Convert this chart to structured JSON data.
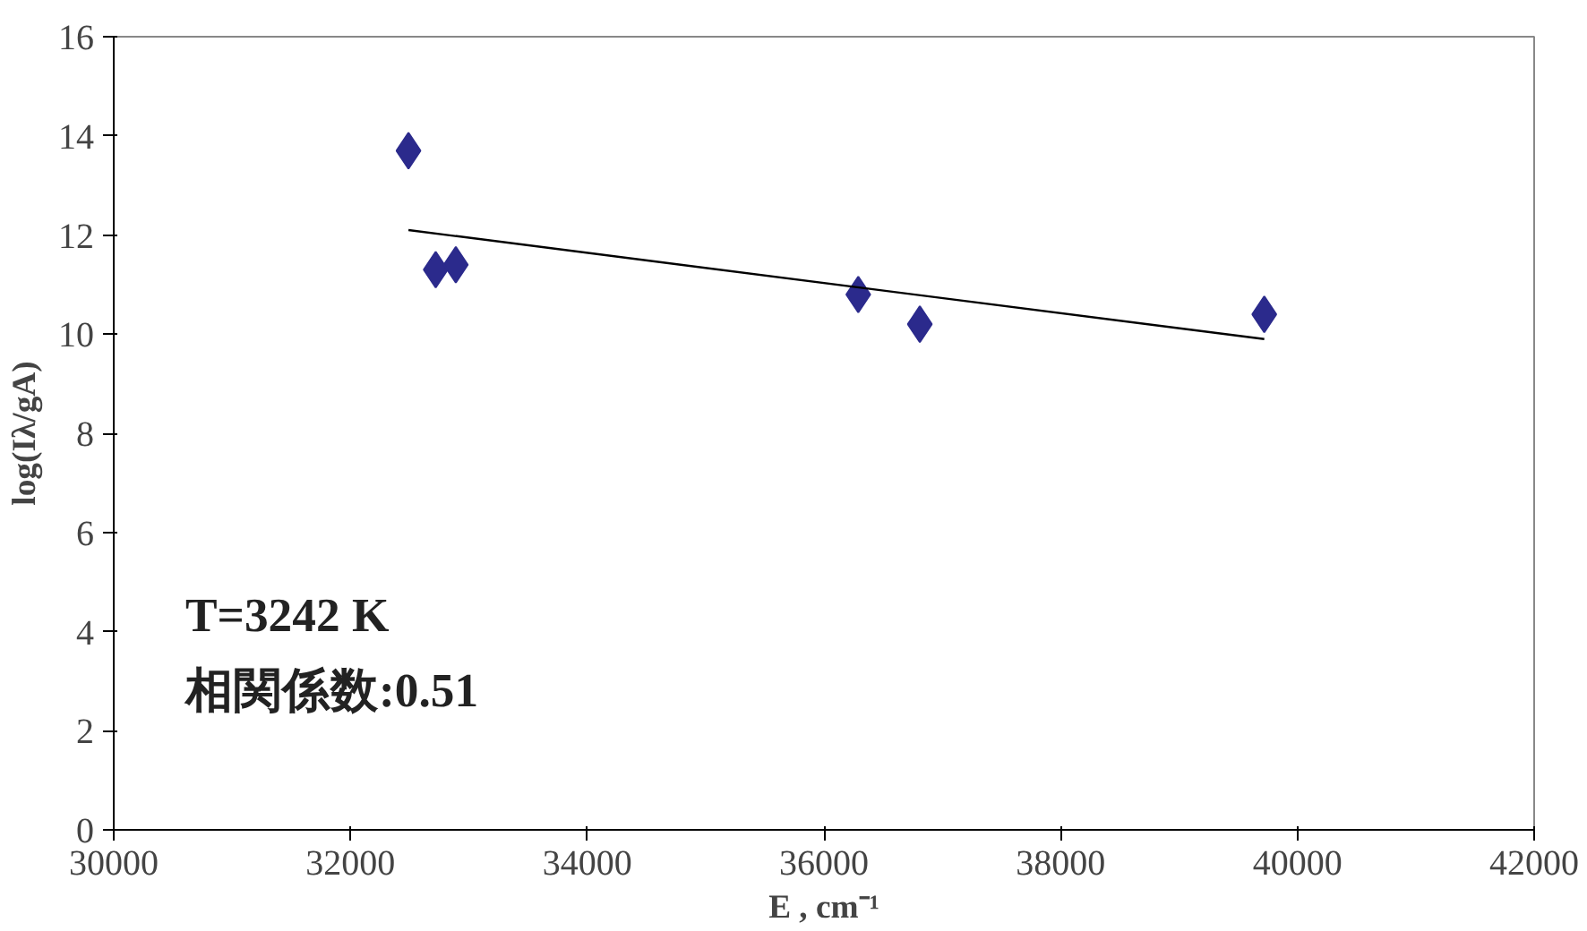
{
  "chart_data": {
    "type": "scatter",
    "xlabel": "E , cm⁻¹",
    "ylabel": "log(Iλ/gA)",
    "xlim": [
      30000,
      42000
    ],
    "xticks": [
      30000,
      32000,
      34000,
      36000,
      38000,
      40000,
      42000
    ],
    "ylim": [
      0,
      16
    ],
    "yticks": [
      0,
      2,
      4,
      6,
      8,
      10,
      12,
      14,
      16
    ],
    "grid": false,
    "series": [
      {
        "marker": "diamond",
        "color": "#2b2a8c",
        "x": [
          32490,
          32720,
          32890,
          36290,
          36810,
          39720
        ],
        "values": [
          13.7,
          11.3,
          11.4,
          10.8,
          10.2,
          10.4
        ]
      },
      {
        "type": "line",
        "color": "#000000",
        "x": [
          32490,
          39720
        ],
        "values": [
          12.1,
          9.9
        ]
      }
    ],
    "annotations": [
      "T=3242 K",
      "相関係数:0.51"
    ]
  }
}
